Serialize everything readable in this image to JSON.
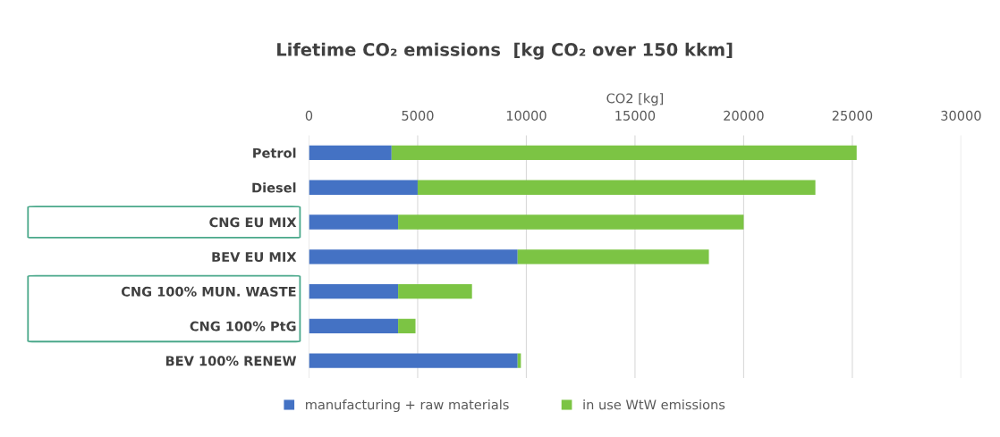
{
  "chart_data": {
    "type": "bar",
    "orientation": "horizontal",
    "stacked": true,
    "title": "Lifetime CO₂ emissions  [kg CO₂ over 150 kkm]",
    "xlabel": "CO2 [kg]",
    "categories": [
      "Petrol",
      "Diesel",
      "CNG EU MIX",
      "BEV EU MIX",
      "CNG 100% MUN. WASTE",
      "CNG 100% PtG",
      "BEV 100% RENEW"
    ],
    "series": [
      {
        "name": "manufacturing + raw materials",
        "color": "#4472c4",
        "values": [
          3800,
          5000,
          4100,
          9600,
          4100,
          4100,
          9600
        ]
      },
      {
        "name": "in use WtW emissions",
        "color": "#7cc444",
        "values": [
          21400,
          18300,
          15900,
          8800,
          3400,
          800,
          150
        ]
      }
    ],
    "xlim": [
      0,
      30000
    ],
    "xticks": [
      0,
      5000,
      10000,
      15000,
      20000,
      25000,
      30000
    ],
    "grid": "x",
    "legend": "bottom"
  }
}
